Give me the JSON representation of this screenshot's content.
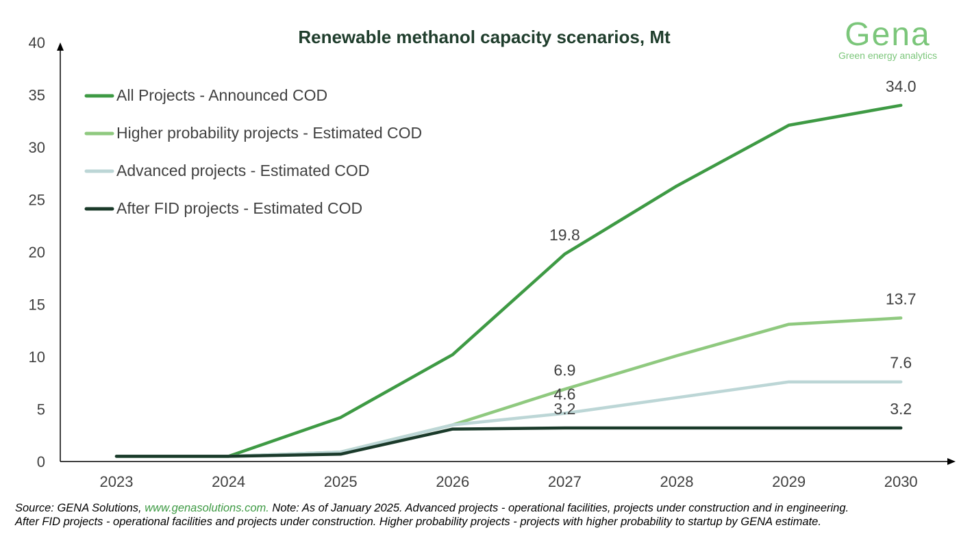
{
  "chart_data": {
    "type": "line",
    "title": "Renewable methanol capacity scenarios, Mt",
    "categories": [
      "2023",
      "2024",
      "2025",
      "2026",
      "2027",
      "2028",
      "2029",
      "2030"
    ],
    "ylim": [
      0,
      40
    ],
    "yticks": [
      0,
      5,
      10,
      15,
      20,
      25,
      30,
      35,
      40
    ],
    "series": [
      {
        "name": "All Projects - Announced COD",
        "color": "#3e9a44",
        "values": [
          0.5,
          0.5,
          4.2,
          10.2,
          19.8,
          26.3,
          32.1,
          34.0
        ]
      },
      {
        "name": "Higher probability projects - Estimated COD",
        "color": "#8fc97f",
        "values": [
          0.5,
          0.5,
          0.9,
          3.5,
          6.9,
          10.1,
          13.1,
          13.7
        ]
      },
      {
        "name": "Advanced projects - Estimated COD",
        "color": "#bcd6d6",
        "values": [
          0.5,
          0.5,
          0.9,
          3.5,
          4.6,
          6.1,
          7.6,
          7.6
        ]
      },
      {
        "name": "After FID projects - Estimated COD",
        "color": "#1a3a2a",
        "values": [
          0.5,
          0.5,
          0.7,
          3.1,
          3.2,
          3.2,
          3.2,
          3.2
        ]
      }
    ],
    "data_labels": [
      {
        "series": 0,
        "category": "2027",
        "text": "19.8"
      },
      {
        "series": 0,
        "category": "2030",
        "text": "34.0"
      },
      {
        "series": 1,
        "category": "2027",
        "text": "6.9"
      },
      {
        "series": 1,
        "category": "2030",
        "text": "13.7"
      },
      {
        "series": 2,
        "category": "2027",
        "text": "4.6"
      },
      {
        "series": 2,
        "category": "2030",
        "text": "7.6"
      },
      {
        "series": 3,
        "category": "2027",
        "text": "3.2"
      },
      {
        "series": 3,
        "category": "2030",
        "text": "3.2"
      }
    ],
    "legend_position": "top-left"
  },
  "logo": {
    "word": "Gena",
    "tagline": "Green energy analytics"
  },
  "footer": {
    "source_prefix": "Source: GENA Solutions, ",
    "source_link": "www.genasolutions.com.",
    "note_line1": " Note: As of January 2025. Advanced projects - operational facilities, projects under construction and in engineering.",
    "note_line2": "After FID projects - operational facilities and projects under construction. Higher probability projects - projects with higher probability to startup by GENA estimate."
  }
}
